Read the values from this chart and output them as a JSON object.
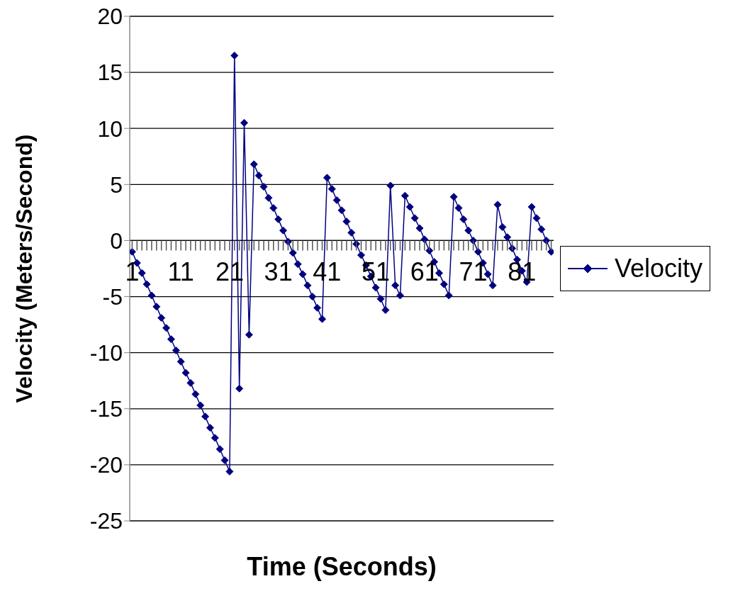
{
  "chart_data": {
    "type": "line",
    "xlabel": "Time (Seconds)",
    "ylabel": "Velocity (Meters/Second)",
    "categories": [
      "1",
      null,
      null,
      null,
      null,
      null,
      null,
      null,
      null,
      null,
      "11",
      null,
      null,
      null,
      null,
      null,
      null,
      null,
      null,
      null,
      "21",
      null,
      null,
      null,
      null,
      null,
      null,
      null,
      null,
      null,
      "31",
      null,
      null,
      null,
      null,
      null,
      null,
      null,
      null,
      null,
      "41",
      null,
      null,
      null,
      null,
      null,
      null,
      null,
      null,
      null,
      "51",
      null,
      null,
      null,
      null,
      null,
      null,
      null,
      null,
      null,
      "61",
      null,
      null,
      null,
      null,
      null,
      null,
      null,
      null,
      null,
      "71",
      null,
      null,
      null,
      null,
      null,
      null,
      null,
      null,
      null,
      "81",
      null,
      null,
      null,
      null,
      null,
      null
    ],
    "series": [
      {
        "name": "Velocity",
        "color": "#000080",
        "values": [
          -1.0,
          -2.0,
          -2.9,
          -3.9,
          -4.9,
          -5.9,
          -6.9,
          -7.8,
          -8.8,
          -9.8,
          -10.8,
          -11.8,
          -12.7,
          -13.7,
          -14.7,
          -15.7,
          -16.7,
          -17.6,
          -18.6,
          -19.6,
          -20.6,
          16.5,
          -13.2,
          10.5,
          -8.4,
          6.8,
          5.8,
          4.8,
          3.8,
          2.9,
          1.9,
          0.9,
          -0.1,
          -1.1,
          -2.1,
          -3.0,
          -4.0,
          -5.0,
          -6.0,
          -7.0,
          5.6,
          4.6,
          3.6,
          2.7,
          1.7,
          0.7,
          -0.3,
          -1.3,
          -2.2,
          -3.2,
          -4.2,
          -5.2,
          -6.2,
          4.9,
          -4.0,
          -4.9,
          4.0,
          3.0,
          2.0,
          1.1,
          0.1,
          -0.9,
          -1.9,
          -2.9,
          -3.9,
          -4.9,
          3.9,
          2.9,
          1.9,
          0.9,
          0.0,
          -1.0,
          -2.0,
          -3.0,
          -4.0,
          3.2,
          1.2,
          0.3,
          -0.7,
          -1.7,
          -2.7,
          -3.7,
          3.0,
          2.0,
          1.0,
          0.0,
          -1.0
        ]
      }
    ],
    "ylim": [
      -25,
      20
    ],
    "yticks": [
      -25,
      -20,
      -15,
      -10,
      -5,
      0,
      5,
      10,
      15,
      20
    ],
    "grid": "y",
    "legend": "right",
    "marker": "diamond",
    "line_style": "solid"
  }
}
